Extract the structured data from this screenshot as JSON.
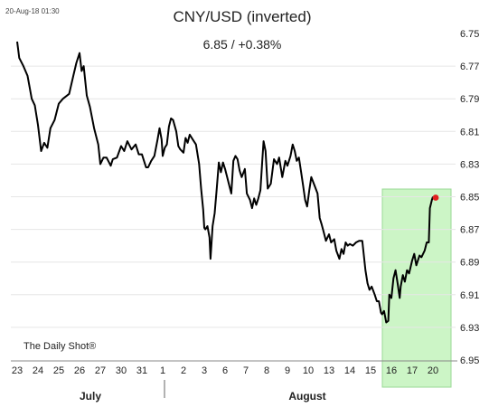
{
  "timestamp": "20-Aug-18 01:30",
  "credit": "The Daily Shot®",
  "chart_data": {
    "type": "line",
    "title": "CNY/USD (inverted)",
    "subtitle": "6.85  /  +0.38%",
    "y_inverted": true,
    "ylim": [
      6.75,
      6.95
    ],
    "y_ticks": [
      "6.75",
      "6.77",
      "6.79",
      "6.81",
      "6.83",
      "6.85",
      "6.87",
      "6.89",
      "6.91",
      "6.93",
      "6.95"
    ],
    "x_ticks": [
      "23",
      "24",
      "25",
      "26",
      "27",
      "30",
      "31",
      "1",
      "2",
      "3",
      "6",
      "7",
      "8",
      "9",
      "10",
      "13",
      "14",
      "15",
      "16",
      "17",
      "20"
    ],
    "months": [
      "July",
      "August"
    ],
    "highlight": {
      "from_tick": 18,
      "to_tick": 20,
      "color": "#ccf5c6"
    },
    "line_color": "#000000",
    "last_point_color": "#e02020",
    "series": [
      {
        "values": [
          [
            0,
            6.755
          ],
          [
            0.1,
            6.765
          ],
          [
            0.3,
            6.77
          ],
          [
            0.5,
            6.776
          ],
          [
            0.7,
            6.79
          ],
          [
            0.85,
            6.794
          ],
          [
            1.0,
            6.806
          ],
          [
            1.15,
            6.822
          ],
          [
            1.3,
            6.817
          ],
          [
            1.45,
            6.82
          ],
          [
            1.6,
            6.808
          ],
          [
            1.8,
            6.803
          ],
          [
            2.0,
            6.793
          ],
          [
            2.2,
            6.79
          ],
          [
            2.5,
            6.787
          ],
          [
            2.7,
            6.776
          ],
          [
            2.85,
            6.768
          ],
          [
            3.0,
            6.762
          ],
          [
            3.1,
            6.773
          ],
          [
            3.2,
            6.77
          ],
          [
            3.35,
            6.788
          ],
          [
            3.5,
            6.795
          ],
          [
            3.7,
            6.808
          ],
          [
            3.9,
            6.818
          ],
          [
            4.0,
            6.83
          ],
          [
            4.15,
            6.826
          ],
          [
            4.3,
            6.826
          ],
          [
            4.5,
            6.831
          ],
          [
            4.6,
            6.827
          ],
          [
            4.8,
            6.826
          ],
          [
            5.0,
            6.819
          ],
          [
            5.15,
            6.822
          ],
          [
            5.3,
            6.816
          ],
          [
            5.5,
            6.821
          ],
          [
            5.7,
            6.818
          ],
          [
            5.85,
            6.824
          ],
          [
            6.0,
            6.824
          ],
          [
            6.1,
            6.828
          ],
          [
            6.2,
            6.832
          ],
          [
            6.3,
            6.832
          ],
          [
            6.45,
            6.828
          ],
          [
            6.6,
            6.825
          ],
          [
            6.75,
            6.815
          ],
          [
            6.85,
            6.808
          ],
          [
            6.95,
            6.815
          ],
          [
            7.0,
            6.825
          ],
          [
            7.1,
            6.82
          ],
          [
            7.2,
            6.818
          ],
          [
            7.3,
            6.807
          ],
          [
            7.4,
            6.802
          ],
          [
            7.5,
            6.803
          ],
          [
            7.65,
            6.81
          ],
          [
            7.75,
            6.819
          ],
          [
            7.85,
            6.821
          ],
          [
            8.0,
            6.823
          ],
          [
            8.1,
            6.814
          ],
          [
            8.2,
            6.817
          ],
          [
            8.3,
            6.812
          ],
          [
            8.45,
            6.815
          ],
          [
            8.6,
            6.818
          ],
          [
            8.75,
            6.83
          ],
          [
            8.85,
            6.845
          ],
          [
            8.95,
            6.858
          ],
          [
            9.0,
            6.869
          ],
          [
            9.05,
            6.87
          ],
          [
            9.15,
            6.868
          ],
          [
            9.25,
            6.875
          ],
          [
            9.3,
            6.888
          ],
          [
            9.4,
            6.868
          ],
          [
            9.5,
            6.86
          ],
          [
            9.6,
            6.845
          ],
          [
            9.7,
            6.829
          ],
          [
            9.8,
            6.835
          ],
          [
            9.9,
            6.829
          ],
          [
            10.0,
            6.833
          ],
          [
            10.1,
            6.838
          ],
          [
            10.2,
            6.843
          ],
          [
            10.3,
            6.848
          ],
          [
            10.4,
            6.828
          ],
          [
            10.5,
            6.825
          ],
          [
            10.6,
            6.827
          ],
          [
            10.7,
            6.834
          ],
          [
            10.8,
            6.838
          ],
          [
            10.95,
            6.833
          ],
          [
            11.05,
            6.848
          ],
          [
            11.2,
            6.852
          ],
          [
            11.3,
            6.857
          ],
          [
            11.4,
            6.851
          ],
          [
            11.5,
            6.855
          ],
          [
            11.6,
            6.851
          ],
          [
            11.7,
            6.846
          ],
          [
            11.8,
            6.826
          ],
          [
            11.85,
            6.816
          ],
          [
            11.95,
            6.822
          ],
          [
            12.05,
            6.845
          ],
          [
            12.2,
            6.842
          ],
          [
            12.35,
            6.827
          ],
          [
            12.5,
            6.83
          ],
          [
            12.6,
            6.826
          ],
          [
            12.75,
            6.838
          ],
          [
            12.9,
            6.828
          ],
          [
            13.0,
            6.831
          ],
          [
            13.15,
            6.825
          ],
          [
            13.25,
            6.818
          ],
          [
            13.35,
            6.822
          ],
          [
            13.45,
            6.828
          ],
          [
            13.55,
            6.826
          ],
          [
            13.65,
            6.834
          ],
          [
            13.75,
            6.843
          ],
          [
            13.85,
            6.852
          ],
          [
            13.95,
            6.856
          ],
          [
            14.05,
            6.846
          ],
          [
            14.15,
            6.838
          ],
          [
            14.3,
            6.843
          ],
          [
            14.45,
            6.848
          ],
          [
            14.55,
            6.863
          ],
          [
            14.65,
            6.867
          ],
          [
            14.75,
            6.872
          ],
          [
            14.85,
            6.877
          ],
          [
            15.0,
            6.873
          ],
          [
            15.1,
            6.878
          ],
          [
            15.25,
            6.876
          ],
          [
            15.35,
            6.883
          ],
          [
            15.5,
            6.888
          ],
          [
            15.6,
            6.882
          ],
          [
            15.7,
            6.885
          ],
          [
            15.8,
            6.878
          ],
          [
            15.9,
            6.88
          ],
          [
            16.0,
            6.879
          ],
          [
            16.15,
            6.88
          ],
          [
            16.3,
            6.878
          ],
          [
            16.45,
            6.877
          ],
          [
            16.6,
            6.877
          ],
          [
            16.75,
            6.895
          ],
          [
            16.85,
            6.903
          ],
          [
            16.95,
            6.907
          ],
          [
            17.05,
            6.905
          ],
          [
            17.2,
            6.91
          ],
          [
            17.3,
            6.914
          ],
          [
            17.4,
            6.914
          ],
          [
            17.5,
            6.921
          ],
          [
            17.55,
            6.922
          ],
          [
            17.65,
            6.92
          ],
          [
            17.75,
            6.927
          ],
          [
            17.85,
            6.926
          ],
          [
            17.9,
            6.91
          ],
          [
            18.0,
            6.912
          ],
          [
            18.1,
            6.9
          ],
          [
            18.2,
            6.895
          ],
          [
            18.3,
            6.903
          ],
          [
            18.4,
            6.912
          ],
          [
            18.45,
            6.905
          ],
          [
            18.55,
            6.898
          ],
          [
            18.65,
            6.902
          ],
          [
            18.75,
            6.895
          ],
          [
            18.85,
            6.897
          ],
          [
            19.0,
            6.889
          ],
          [
            19.1,
            6.885
          ],
          [
            19.2,
            6.892
          ],
          [
            19.35,
            6.886
          ],
          [
            19.45,
            6.887
          ],
          [
            19.6,
            6.883
          ],
          [
            19.7,
            6.878
          ],
          [
            19.8,
            6.878
          ],
          [
            19.85,
            6.857
          ],
          [
            19.95,
            6.852
          ],
          [
            20.0,
            6.85
          ]
        ]
      }
    ]
  }
}
